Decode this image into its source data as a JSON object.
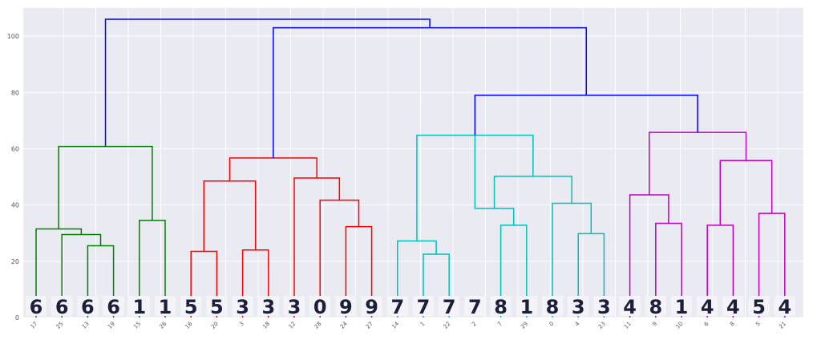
{
  "chart_data": {
    "type": "dendrogram",
    "ylim": [
      0,
      110
    ],
    "yticks": [
      0,
      20,
      40,
      60,
      80,
      100
    ],
    "grid": true,
    "background": "#eaeaf2",
    "leaves": [
      {
        "id": "17",
        "digit": "6"
      },
      {
        "id": "25",
        "digit": "6"
      },
      {
        "id": "13",
        "digit": "6"
      },
      {
        "id": "19",
        "digit": "6"
      },
      {
        "id": "15",
        "digit": "1"
      },
      {
        "id": "26",
        "digit": "1"
      },
      {
        "id": "16",
        "digit": "5"
      },
      {
        "id": "20",
        "digit": "5"
      },
      {
        "id": "3",
        "digit": "3"
      },
      {
        "id": "18",
        "digit": "3"
      },
      {
        "id": "12",
        "digit": "3"
      },
      {
        "id": "28",
        "digit": "0"
      },
      {
        "id": "24",
        "digit": "9"
      },
      {
        "id": "27",
        "digit": "9"
      },
      {
        "id": "14",
        "digit": "7"
      },
      {
        "id": "1",
        "digit": "7"
      },
      {
        "id": "22",
        "digit": "7"
      },
      {
        "id": "2",
        "digit": "7"
      },
      {
        "id": "7",
        "digit": "8"
      },
      {
        "id": "29",
        "digit": "1"
      },
      {
        "id": "0",
        "digit": "8"
      },
      {
        "id": "4",
        "digit": "3"
      },
      {
        "id": "23",
        "digit": "3"
      },
      {
        "id": "11",
        "digit": "4"
      },
      {
        "id": "9",
        "digit": "8"
      },
      {
        "id": "10",
        "digit": "1"
      },
      {
        "id": "6",
        "digit": "4"
      },
      {
        "id": "8",
        "digit": "4"
      },
      {
        "id": "5",
        "digit": "5"
      },
      {
        "id": "21",
        "digit": "4"
      }
    ],
    "clusters": [
      {
        "name": "green",
        "color": "#008000",
        "merges": [
          [
            2,
            3,
            25.5
          ],
          [
            1,
            2.5,
            29.5
          ],
          [
            0,
            1.75,
            31.5
          ],
          [
            4,
            5,
            34.5
          ],
          [
            0.875,
            4.5,
            60.8
          ]
        ]
      },
      {
        "name": "red",
        "color": "#ff0000",
        "merges": [
          [
            6,
            7,
            23.5
          ],
          [
            8,
            9,
            24
          ],
          [
            6.5,
            8.5,
            48.5
          ],
          [
            12,
            13,
            32.3
          ],
          [
            11,
            12.5,
            41.7
          ],
          [
            10,
            11.75,
            49.6
          ],
          [
            7.5,
            10.875,
            56.7
          ]
        ]
      },
      {
        "name": "cyan",
        "color": "#00bfbf",
        "merges": [
          [
            15,
            16,
            22.5
          ],
          [
            14,
            15.5,
            27.2
          ],
          [
            18,
            19,
            32.8
          ],
          [
            17,
            18.5,
            38.8
          ],
          [
            21,
            22,
            29.8
          ],
          [
            20,
            21.5,
            40.6
          ],
          [
            17.75,
            20.75,
            50.2
          ],
          [
            14.75,
            19.25,
            64.8
          ]
        ]
      },
      {
        "name": "magenta",
        "color": "#bf00bf",
        "merges": [
          [
            24,
            25,
            33.5
          ],
          [
            23,
            24.5,
            43.6
          ],
          [
            26,
            27,
            32.8
          ],
          [
            28,
            29,
            37
          ],
          [
            26.5,
            28.5,
            55.8
          ],
          [
            23.75,
            27.5,
            65.8
          ]
        ]
      },
      {
        "name": "links",
        "color": "#0000ff",
        "merges": [
          [
            17.0,
            25.625,
            79
          ],
          [
            9.1875,
            21.3125,
            103
          ],
          [
            2.6875,
            15.25,
            106
          ]
        ]
      }
    ]
  }
}
